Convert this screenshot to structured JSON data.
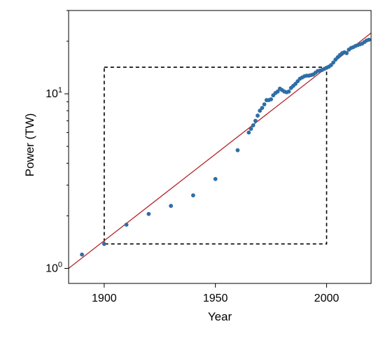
{
  "chart_data": {
    "type": "scatter",
    "xlabel": "Year",
    "ylabel": "Power (TW)",
    "xlim": [
      1884,
      2020
    ],
    "ylim": [
      0.82,
      30
    ],
    "yscale": "log",
    "x_ticks": [
      {
        "value": 1900,
        "label": "1900"
      },
      {
        "value": 1950,
        "label": "1950"
      },
      {
        "value": 2000,
        "label": "2000"
      }
    ],
    "y_ticks": [
      {
        "value": 1,
        "base": "10",
        "exp": "0"
      },
      {
        "value": 10,
        "base": "10",
        "exp": "1"
      }
    ],
    "y_minor_ticks": [
      2,
      3,
      4,
      5,
      6,
      7,
      8,
      9,
      20,
      30
    ],
    "grid": false,
    "colors": {
      "points": "#2e6ea6",
      "trend": "#b5292f",
      "box": "#000000"
    },
    "series": [
      {
        "kind": "points",
        "x": [
          1890,
          1900,
          1910,
          1920,
          1930,
          1940,
          1950,
          1960,
          1965,
          1966,
          1967,
          1968,
          1969,
          1970,
          1971,
          1972,
          1973,
          1974,
          1975,
          1976,
          1977,
          1978,
          1979,
          1980,
          1981,
          1982,
          1983,
          1984,
          1985,
          1986,
          1987,
          1988,
          1989,
          1990,
          1991,
          1992,
          1993,
          1994,
          1995,
          1996,
          1997,
          1998,
          1999,
          2000,
          2001,
          2002,
          2003,
          2004,
          2005,
          2006,
          2007,
          2008,
          2009,
          2010,
          2011,
          2012,
          2013,
          2014,
          2015,
          2016,
          2017,
          2018,
          2019
        ],
        "y": [
          1.2,
          1.38,
          1.78,
          2.05,
          2.28,
          2.62,
          3.25,
          4.75,
          6.0,
          6.3,
          6.6,
          7.0,
          7.5,
          8.0,
          8.3,
          8.7,
          9.2,
          9.2,
          9.3,
          9.8,
          10.1,
          10.3,
          10.7,
          10.5,
          10.3,
          10.2,
          10.3,
          10.8,
          11.1,
          11.4,
          11.8,
          12.2,
          12.4,
          12.6,
          12.7,
          12.7,
          12.8,
          12.9,
          13.2,
          13.5,
          13.6,
          13.7,
          13.9,
          14.1,
          14.3,
          14.6,
          15.1,
          15.7,
          16.2,
          16.7,
          17.1,
          17.3,
          17.1,
          17.9,
          18.3,
          18.5,
          18.8,
          19.0,
          19.2,
          19.4,
          19.8,
          20.2,
          20.4
        ]
      },
      {
        "kind": "trend-line",
        "x": [
          1884,
          2020
        ],
        "y": [
          1.0,
          22.3
        ]
      }
    ],
    "annotations": [
      {
        "kind": "dashed-rectangle",
        "x": [
          1900,
          2000
        ],
        "y": [
          1.38,
          14.2
        ]
      }
    ]
  }
}
